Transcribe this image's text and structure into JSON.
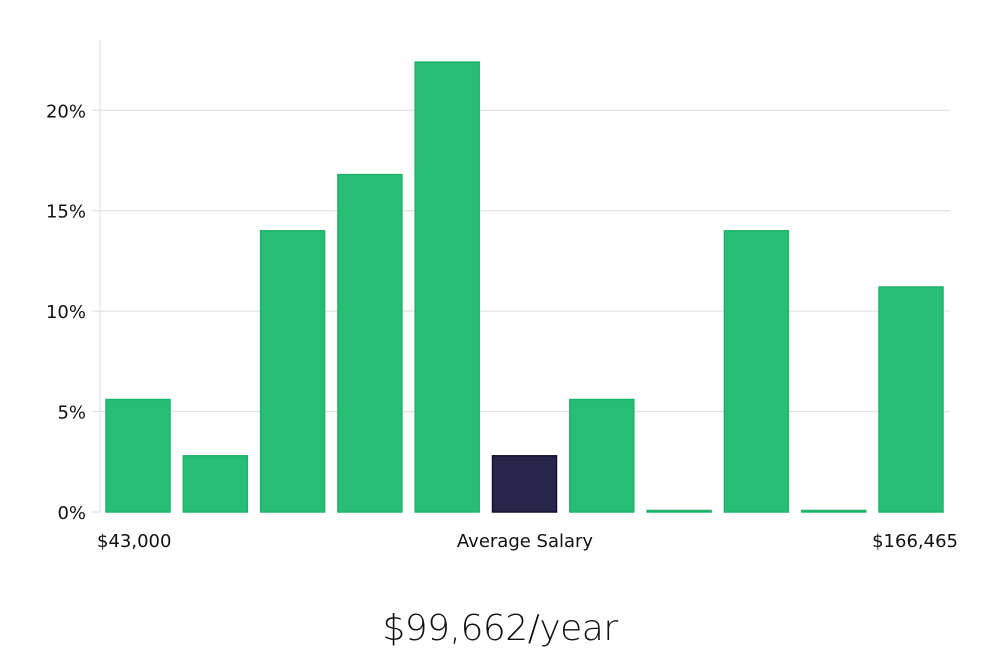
{
  "chart_data": {
    "type": "bar",
    "values": [
      5.6,
      2.8,
      14.0,
      16.8,
      22.4,
      2.8,
      5.6,
      0,
      14.0,
      0,
      11.2
    ],
    "highlight_index": 5,
    "ylim": [
      0,
      23.5
    ],
    "yticks": [
      0,
      5,
      10,
      15,
      20
    ],
    "ytick_labels": [
      "0%",
      "5%",
      "10%",
      "15%",
      "20%"
    ],
    "x_min_label": "$43,000",
    "x_center_label": "Average Salary",
    "x_max_label": "$166,465",
    "grid": true
  },
  "colors": {
    "bar": "#27bd74",
    "bar_stroke": "#1fb36a",
    "highlight": "#29254a",
    "highlight_stroke": "#141230",
    "grid": "#dddddd",
    "axis": "#dddddd"
  },
  "summary": {
    "salary_text": "$99,662/year"
  }
}
